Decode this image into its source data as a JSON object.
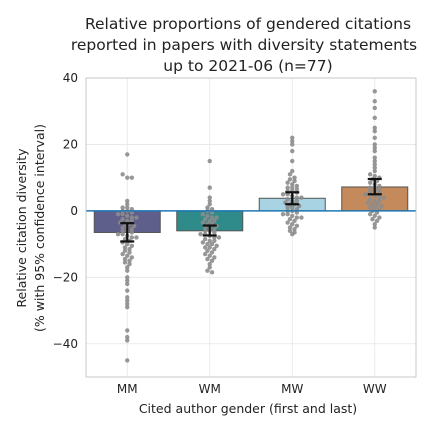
{
  "chart_data": {
    "type": "bar",
    "title_lines": [
      "Relative proportions of gendered citations",
      "reported in papers with diversity statements",
      "up to 2021-06 (n=77)"
    ],
    "xlabel": "Cited author gender (first and last)",
    "ylabel_lines": [
      "Relative citation diversity",
      "(% with 95% confidence interval)"
    ],
    "categories": [
      "MM",
      "WM",
      "MW",
      "WW"
    ],
    "values": [
      -6.5,
      -6.0,
      3.8,
      7.2
    ],
    "ci_low": [
      -9.2,
      -7.4,
      2.0,
      5.0
    ],
    "ci_high": [
      -3.7,
      -4.4,
      5.6,
      9.6
    ],
    "colors": [
      "#5f5f8c",
      "#2f8a8a",
      "#a8d3e3",
      "#c48a5c"
    ],
    "ylim": [
      -50,
      40
    ],
    "yticks": [
      -40,
      -20,
      0,
      20,
      40
    ],
    "grid": true,
    "zero_line_color": "#1f77b4",
    "point_color": "#8c8c8c",
    "points": [
      [
        17,
        11,
        10,
        10,
        3,
        2,
        1,
        1,
        0.5,
        0,
        0,
        -0.5,
        -1,
        -1,
        -1.5,
        -2,
        -2,
        -2.5,
        -3,
        -3,
        -3.5,
        -4,
        -4,
        -4.5,
        -5,
        -5,
        -5.5,
        -6,
        -6,
        -6.5,
        -7,
        -7,
        -7.5,
        -8,
        -8,
        -8.5,
        -9,
        -9.5,
        -10,
        -10.5,
        -11,
        -11.5,
        -12,
        -12.5,
        -13,
        -13.5,
        -14,
        -14.5,
        -15,
        -15.5,
        -16,
        -17,
        -18,
        -20,
        -21,
        -22,
        -24,
        -26,
        -27,
        -28,
        -29,
        -36,
        -38,
        -39,
        -45
      ],
      [
        15,
        7,
        4,
        3,
        2,
        1,
        0.5,
        0,
        -0.5,
        -1,
        -1.5,
        -2,
        -2,
        -2.5,
        -3,
        -3,
        -3.5,
        -4,
        -4,
        -4.5,
        -5,
        -5,
        -5.5,
        -6,
        -6,
        -6.5,
        -7,
        -7,
        -7.5,
        -8,
        -8,
        -8.5,
        -9,
        -9,
        -9.5,
        -10,
        -10,
        -10.5,
        -11,
        -11,
        -11.5,
        -12,
        -12.5,
        -13,
        -13.5,
        -14,
        -14.5,
        -15,
        -16,
        -17,
        -18,
        -18.5
      ],
      [
        22,
        21,
        20,
        18,
        15,
        12,
        11,
        10,
        9.5,
        9,
        8.5,
        8,
        7.5,
        7,
        7,
        6.5,
        6,
        6,
        5.5,
        5,
        5,
        4.5,
        4,
        4,
        3.5,
        3,
        3,
        2.5,
        2,
        2,
        1.5,
        1,
        1,
        0.5,
        0,
        0,
        -0.5,
        -1,
        -1,
        -1.5,
        -2,
        -2,
        -2.5,
        -3,
        -3.5,
        -4,
        -4.5,
        -5,
        -5.5,
        -6,
        -6.5,
        -7
      ],
      [
        36,
        33,
        31,
        28,
        25,
        24,
        22,
        20,
        19,
        18,
        16,
        15,
        14,
        13,
        12,
        11,
        10.5,
        10,
        9.5,
        9,
        8.5,
        8,
        7.5,
        7,
        7,
        6.5,
        6,
        6,
        5.5,
        5,
        5,
        4.5,
        4,
        4,
        3.5,
        3,
        3,
        2.5,
        2,
        2,
        1.5,
        1,
        1,
        0.5,
        0,
        -0.5,
        -1,
        -1.5,
        -2,
        -2.5,
        -3,
        -4,
        -5
      ]
    ]
  }
}
